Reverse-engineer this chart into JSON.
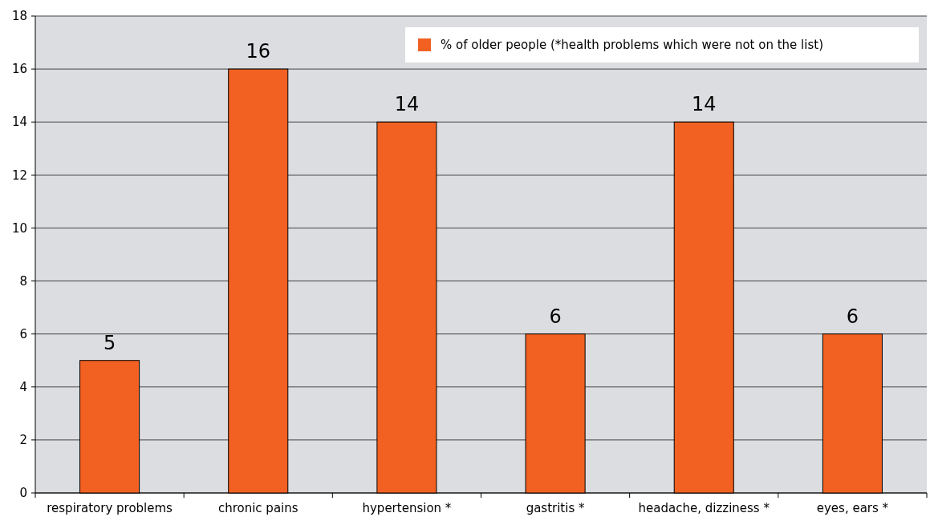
{
  "chart_data": {
    "type": "bar",
    "categories": [
      "respiratory problems",
      "chronic pains",
      "hypertension *",
      "gastritis *",
      "headache, dizziness *",
      "eyes, ears *"
    ],
    "series": [
      {
        "name": "% of older people (*health problems which were not on the list)",
        "color": "#f26122",
        "values": [
          5,
          16,
          14,
          6,
          14,
          6
        ]
      }
    ],
    "ylim": [
      0,
      18
    ],
    "yticks": [
      0,
      2,
      4,
      6,
      8,
      10,
      12,
      14,
      16,
      18
    ],
    "grid": "y",
    "legend": "top right",
    "data_labels": true
  }
}
